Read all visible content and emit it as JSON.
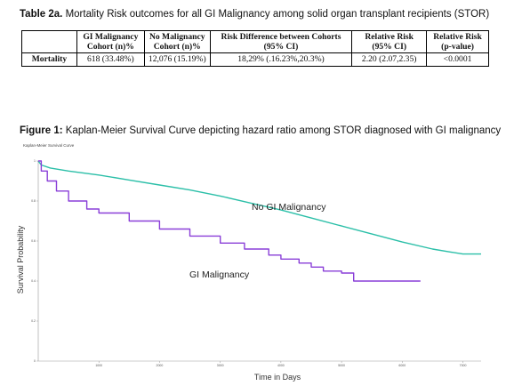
{
  "table": {
    "title_bold": "Table 2a.",
    "title_rest": " Mortality Risk outcomes for all GI Malignancy among solid organ transplant recipients (STOR)",
    "headers": [
      "",
      "GI Malignancy Cohort (n)%",
      "No Malignancy Cohort (n)%",
      "Risk Difference between Cohorts (95% CI)",
      "Relative Risk (95% CI)",
      "Relative Risk (p-value)"
    ],
    "row": {
      "label": "Mortality",
      "gi_cohort": "618 (33.48%)",
      "no_malignancy_cohort": "12,076 (15.19%)",
      "risk_difference": "18,29% (.16.23%,20.3%)",
      "relative_risk_ci": "2.20 (2.07,2.35)",
      "relative_risk_p": "<0.0001"
    }
  },
  "figure": {
    "title_bold": "Figure 1:",
    "title_rest": " Kaplan-Meier Survival Curve depicting hazard ratio among STOR diagnosed with GI malignancy",
    "subtitle": "Kaplan-Meier Survival Curve"
  },
  "chart_data": {
    "type": "line",
    "title": "Kaplan-Meier Survival Curve",
    "xlabel": "Time in Days",
    "ylabel": "Survival Probability",
    "xlim": [
      0,
      7300
    ],
    "ylim": [
      0,
      1
    ],
    "x_ticks": [
      1000,
      2000,
      3000,
      4000,
      5000,
      6000,
      7000
    ],
    "y_ticks": [
      0,
      0.2,
      0.4,
      0.6,
      0.8,
      1
    ],
    "y_tick_labels": [
      "0",
      "0.2",
      "0.4",
      "0.6",
      "0.8",
      "1"
    ],
    "grid": false,
    "series": [
      {
        "name": "No GI Malignancy",
        "color": "#2bbfa8",
        "x": [
          0,
          50,
          200,
          500,
          1000,
          1500,
          2000,
          2500,
          3000,
          3500,
          4000,
          4500,
          5000,
          5500,
          6000,
          6500,
          6800,
          7000,
          7300
        ],
        "y": [
          1.0,
          0.98,
          0.965,
          0.95,
          0.93,
          0.905,
          0.88,
          0.855,
          0.825,
          0.79,
          0.755,
          0.715,
          0.675,
          0.635,
          0.595,
          0.56,
          0.545,
          0.535,
          0.535
        ]
      },
      {
        "name": "GI Malignancy",
        "color": "#8a3fd8",
        "x": [
          0,
          50,
          150,
          300,
          500,
          800,
          1000,
          1500,
          2000,
          2500,
          3000,
          3400,
          3800,
          4000,
          4300,
          4500,
          4700,
          5000,
          5200,
          5500,
          6000,
          6300
        ],
        "y": [
          1.0,
          0.95,
          0.9,
          0.85,
          0.8,
          0.76,
          0.74,
          0.7,
          0.66,
          0.625,
          0.59,
          0.56,
          0.53,
          0.51,
          0.49,
          0.47,
          0.45,
          0.44,
          0.4,
          0.4,
          0.4,
          0.4
        ]
      }
    ]
  }
}
